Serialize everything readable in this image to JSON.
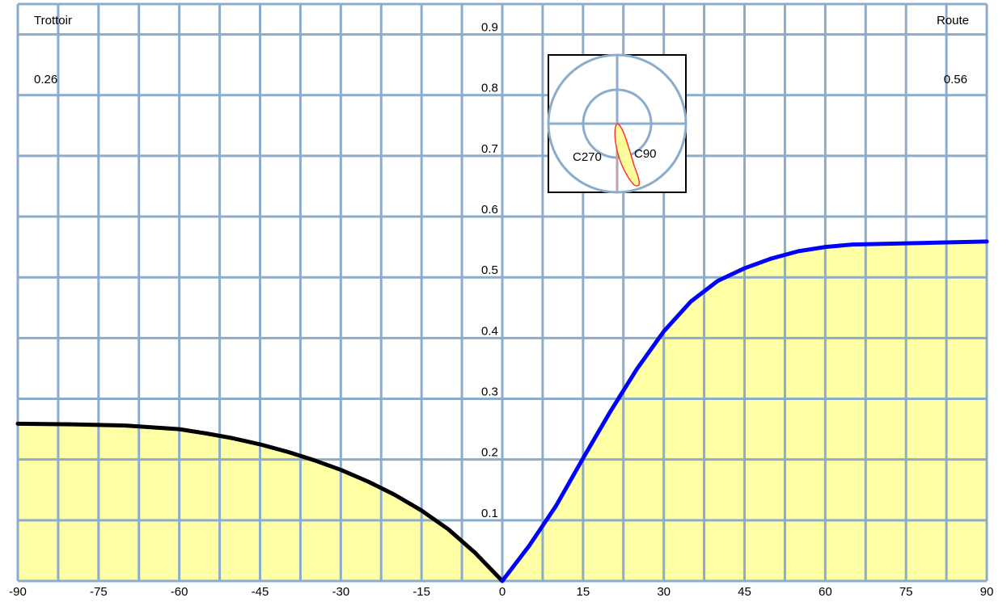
{
  "corner_labels": {
    "left_title": "Trottoir",
    "left_value": "0.26",
    "right_title": "Route",
    "right_value": "0.56"
  },
  "inset": {
    "left_label": "C270",
    "right_label": "C90"
  },
  "colors": {
    "grid": "#8caccc",
    "fill": "#ffffa6",
    "trottoir_curve": "#000000",
    "route_curve": "#0000ff",
    "inset_lobe_fill": "#ffff99",
    "inset_lobe_stroke": "#ff3333",
    "inset_lobe_axis": "#c8a0a0"
  },
  "chart_data": {
    "type": "area",
    "xlim": [
      -90,
      90
    ],
    "ylim": [
      0,
      0.95
    ],
    "x_ticks": [
      "-90",
      "-75",
      "-60",
      "-45",
      "-30",
      "-15",
      "0",
      "15",
      "30",
      "45",
      "60",
      "75",
      "90"
    ],
    "y_ticks": [
      "0.1",
      "0.2",
      "0.3",
      "0.4",
      "0.5",
      "0.6",
      "0.7",
      "0.8",
      "0.9"
    ],
    "x_grid_step": 7.5,
    "y_grid_step": 0.1,
    "grid": true,
    "series": [
      {
        "name": "Trottoir",
        "color": "#000000",
        "points": [
          [
            -90,
            0.259
          ],
          [
            -80,
            0.258
          ],
          [
            -70,
            0.256
          ],
          [
            -60,
            0.25
          ],
          [
            -55,
            0.243
          ],
          [
            -50,
            0.235
          ],
          [
            -45,
            0.225
          ],
          [
            -40,
            0.213
          ],
          [
            -35,
            0.199
          ],
          [
            -30,
            0.183
          ],
          [
            -25,
            0.164
          ],
          [
            -20,
            0.142
          ],
          [
            -15,
            0.116
          ],
          [
            -10,
            0.085
          ],
          [
            -5,
            0.046
          ],
          [
            0,
            0.0
          ]
        ]
      },
      {
        "name": "Route",
        "color": "#0000ff",
        "points": [
          [
            0,
            0.0
          ],
          [
            5,
            0.058
          ],
          [
            10,
            0.124
          ],
          [
            15,
            0.202
          ],
          [
            20,
            0.278
          ],
          [
            25,
            0.349
          ],
          [
            30,
            0.411
          ],
          [
            35,
            0.46
          ],
          [
            40,
            0.494
          ],
          [
            45,
            0.515
          ],
          [
            50,
            0.531
          ],
          [
            55,
            0.543
          ],
          [
            60,
            0.55
          ],
          [
            65,
            0.554
          ],
          [
            70,
            0.555
          ],
          [
            75,
            0.556
          ],
          [
            80,
            0.557
          ],
          [
            85,
            0.558
          ],
          [
            90,
            0.559
          ]
        ]
      }
    ]
  }
}
